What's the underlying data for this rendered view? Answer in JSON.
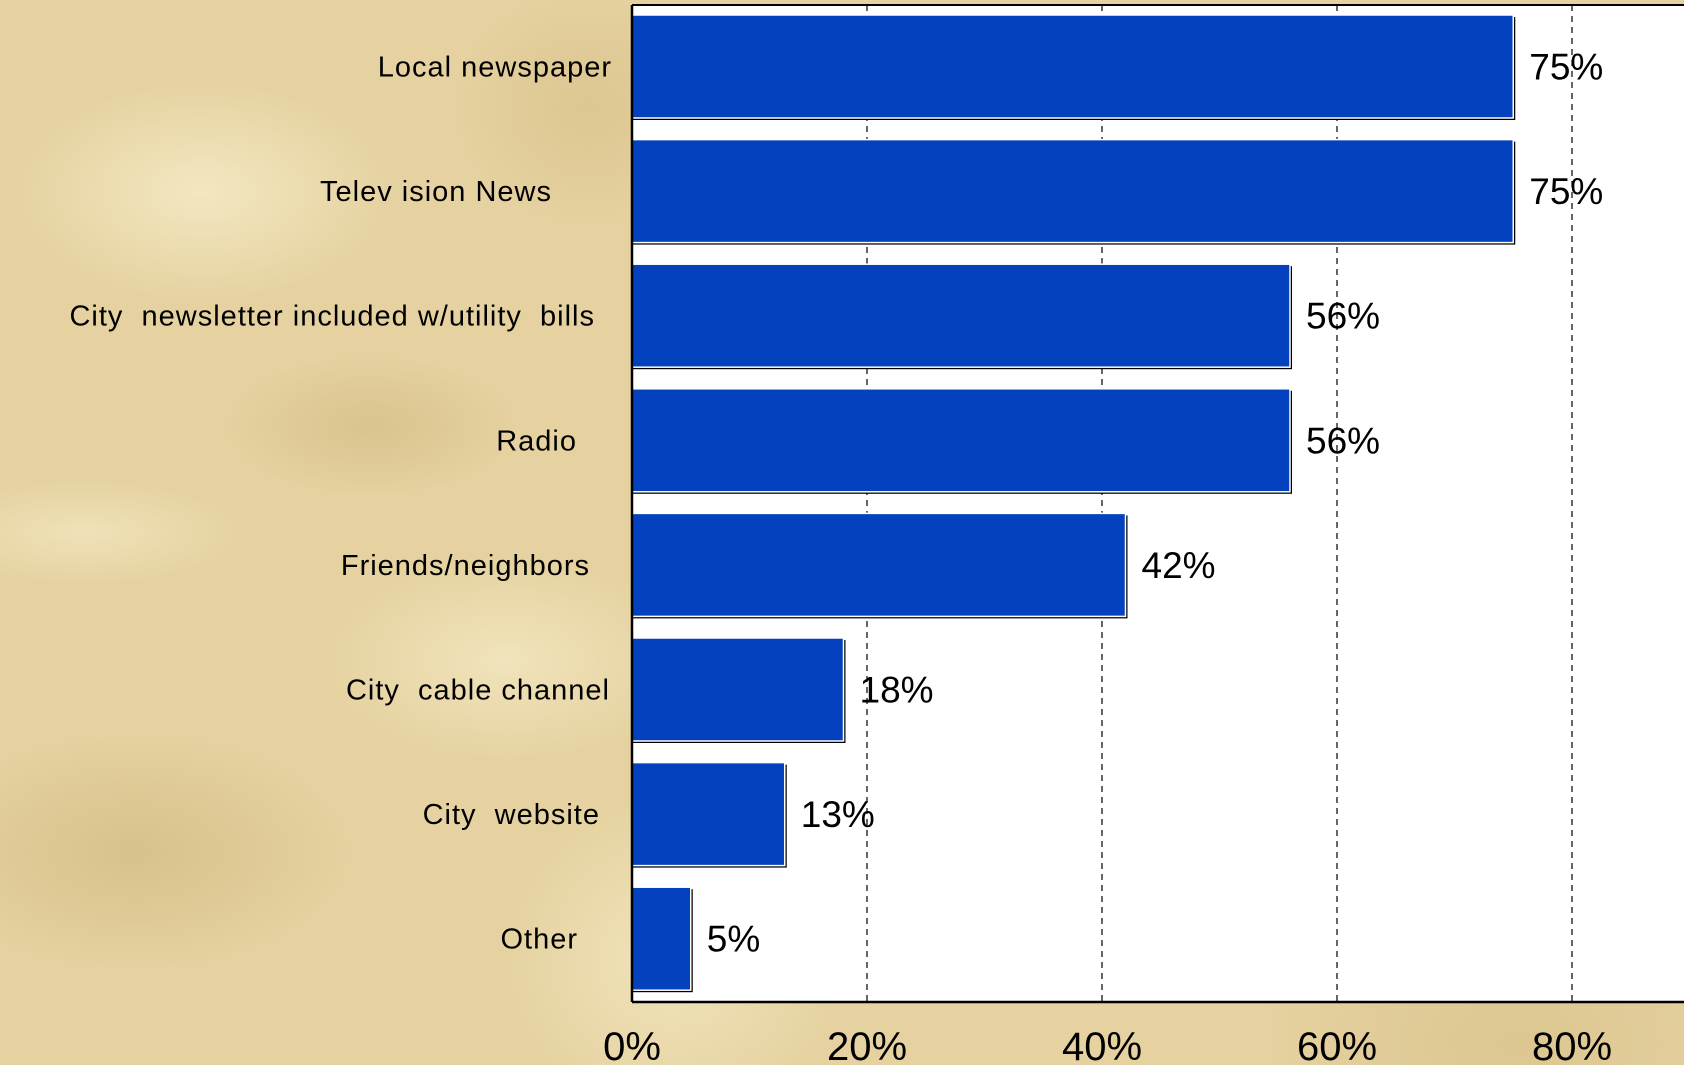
{
  "chart_data": {
    "type": "bar",
    "orientation": "horizontal",
    "categories": [
      "Local newspaper",
      "Telev ision News",
      "City  newsletter included w/utility  bills",
      "Radio",
      "Friends/neighbors",
      "City  cable channel",
      "City  website",
      "Other"
    ],
    "values": [
      75,
      75,
      56,
      56,
      42,
      18,
      13,
      5
    ],
    "value_labels": [
      "75%",
      "75%",
      "56%",
      "56%",
      "42%",
      "18%",
      "13%",
      "5%"
    ],
    "xlim": [
      0,
      88
    ],
    "x_ticks": [
      0,
      20,
      40,
      60,
      80
    ],
    "x_tick_labels": [
      "0%",
      "20%",
      "40%",
      "60%",
      "80%"
    ],
    "grid": "vertical dashed",
    "legend": "none",
    "colors": {
      "bar": "#0341bf",
      "plot_background": "#ffffff",
      "page_background": "#e5d2a0"
    }
  }
}
